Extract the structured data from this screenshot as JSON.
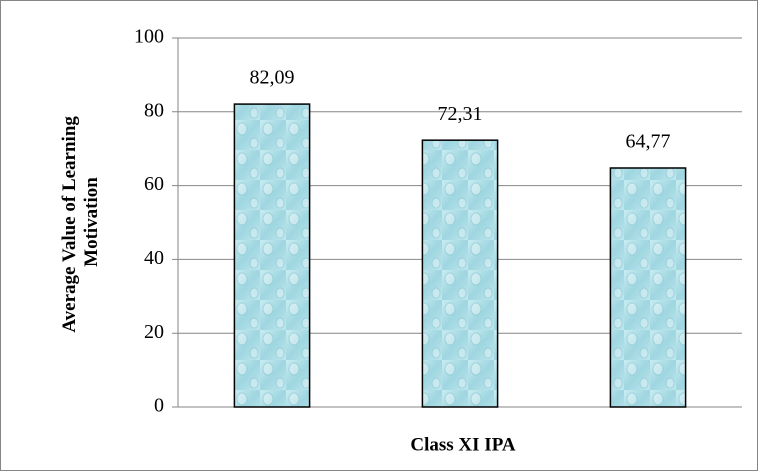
{
  "chart_data": {
    "type": "bar",
    "categories": [
      null,
      null,
      null
    ],
    "values": [
      82.09,
      72.31,
      64.77
    ],
    "value_labels": [
      "82,09",
      "72,31",
      "64,77"
    ],
    "color": "#aadde6",
    "xlabel": "Class XI IPA",
    "ylabel": [
      "Average Value of Learning",
      "Motivation"
    ],
    "ylim": [
      0,
      100
    ],
    "yticks": [
      0,
      20,
      40,
      60,
      80,
      100
    ],
    "grid": true
  }
}
